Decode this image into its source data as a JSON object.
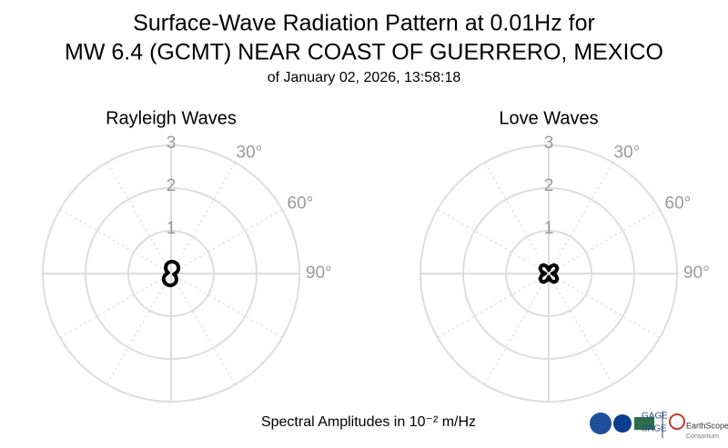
{
  "header": {
    "title_lines": [
      "Surface-Wave Radiation Pattern at 0.01Hz for",
      "MW 6.4 (GCMT) NEAR COAST OF GUERRERO, MEXICO"
    ],
    "subtitle": "of January 02, 2026, 13:58:18"
  },
  "chart_data": [
    {
      "type": "polar",
      "title": "Rayleigh Waves",
      "color": "#000000",
      "x": [
        0,
        15,
        30,
        45,
        60,
        75,
        90,
        105,
        120,
        135,
        150,
        165,
        180,
        195,
        210,
        225,
        240,
        255,
        270,
        285,
        300,
        315,
        330,
        345
      ],
      "values": [
        0.28,
        0.28,
        0.27,
        0.24,
        0.2,
        0.15,
        0.09,
        0.07,
        0.13,
        0.18,
        0.23,
        0.26,
        0.28,
        0.28,
        0.27,
        0.24,
        0.2,
        0.15,
        0.09,
        0.07,
        0.13,
        0.18,
        0.23,
        0.26
      ],
      "xlim": [
        0,
        360
      ],
      "xticks": [
        {
          "value": 30,
          "label": "30°"
        },
        {
          "value": 60,
          "label": "60°"
        },
        {
          "value": 90,
          "label": "90°"
        }
      ],
      "ylim": [
        0,
        3
      ],
      "yticks": [
        1,
        2,
        3
      ],
      "grid": true
    },
    {
      "type": "polar",
      "title": "Love Waves",
      "color": "#000000",
      "x": [
        0,
        15,
        30,
        45,
        60,
        75,
        90,
        105,
        120,
        135,
        150,
        165,
        180,
        195,
        210,
        225,
        240,
        255,
        270,
        285,
        300,
        315,
        330,
        345
      ],
      "values": [
        0.08,
        0.17,
        0.23,
        0.25,
        0.23,
        0.17,
        0.08,
        0.17,
        0.23,
        0.25,
        0.23,
        0.17,
        0.08,
        0.17,
        0.23,
        0.25,
        0.23,
        0.17,
        0.08,
        0.17,
        0.23,
        0.25,
        0.23,
        0.17
      ],
      "xlim": [
        0,
        360
      ],
      "xticks": [
        {
          "value": 30,
          "label": "30°"
        },
        {
          "value": 60,
          "label": "60°"
        },
        {
          "value": 90,
          "label": "90°"
        }
      ],
      "ylim": [
        0,
        3
      ],
      "yticks": [
        1,
        2,
        3
      ],
      "grid": true
    }
  ],
  "footer": {
    "caption": "Spectral Amplitudes in 10⁻² m/Hz",
    "logo_texts": [
      "GAGE",
      "SAGE",
      "EarthScope",
      "Consortium"
    ]
  }
}
